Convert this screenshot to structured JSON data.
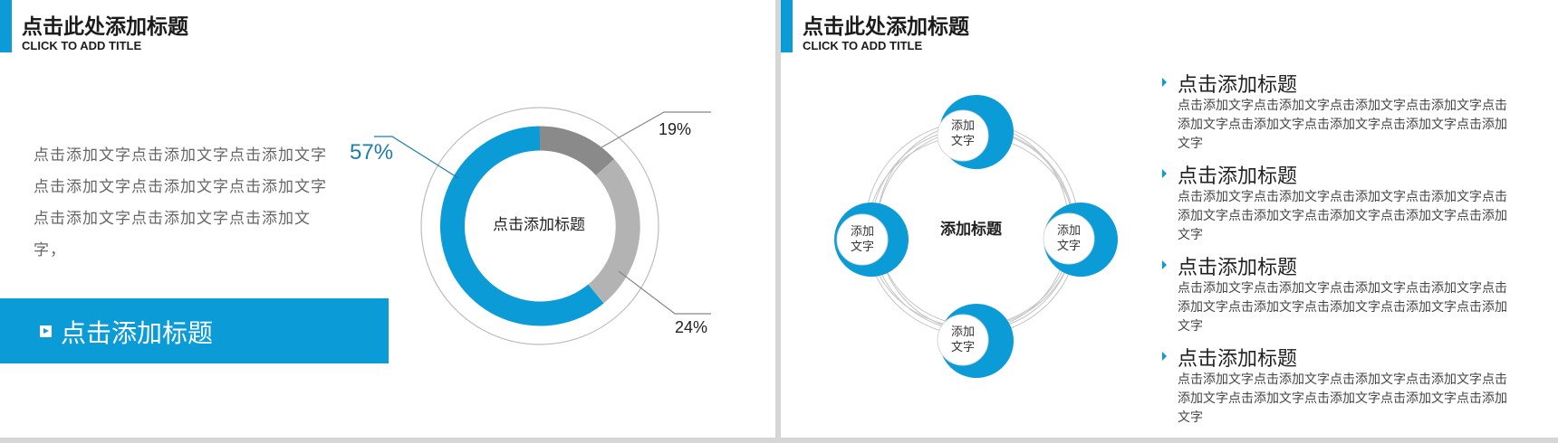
{
  "slides": [
    {
      "title_cn": "点击此处添加标题",
      "title_en": "CLICK TO ADD TITLE",
      "body_text": "点击添加文字点击添加文字点击添加文字点击添加文字点击添加文字点击添加文字点击添加文字点击添加文字点击添加文字，",
      "banner_label": "点击添加标题",
      "donut": {
        "center_label": "点击添加标题",
        "labels": {
          "main": "57%",
          "small": "19%",
          "medium": "24%"
        }
      }
    },
    {
      "title_cn": "点击此处添加标题",
      "title_en": "CLICK TO ADD TITLE",
      "diagram": {
        "center_title": "添加标题",
        "nodes": [
          {
            "label_line1": "添加",
            "label_line2": "文字"
          },
          {
            "label_line1": "添加",
            "label_line2": "文字"
          },
          {
            "label_line1": "添加",
            "label_line2": "文字"
          },
          {
            "label_line1": "添加",
            "label_line2": "文字"
          }
        ]
      },
      "list": [
        {
          "title": "点击添加标题",
          "text": "点击添加文字点击添加文字点击添加文字点击添加文字点击添加文字点击添加文字点击添加文字点击添加文字点击添加文字"
        },
        {
          "title": "点击添加标题",
          "text": "点击添加文字点击添加文字点击添加文字点击添加文字点击添加文字点击添加文字点击添加文字点击添加文字点击添加文字"
        },
        {
          "title": "点击添加标题",
          "text": "点击添加文字点击添加文字点击添加文字点击添加文字点击添加文字点击添加文字点击添加文字点击添加文字点击添加文字"
        },
        {
          "title": "点击添加标题",
          "text": "点击添加文字点击添加文字点击添加文字点击添加文字点击添加文字点击添加文字点击添加文字点击添加文字点击添加文字"
        }
      ]
    }
  ],
  "colors": {
    "accent": "#0b9bd6",
    "dark_gray": "#8a8a8a",
    "light_gray": "#b3b3b3",
    "label_blue": "#1f7ea8"
  }
}
